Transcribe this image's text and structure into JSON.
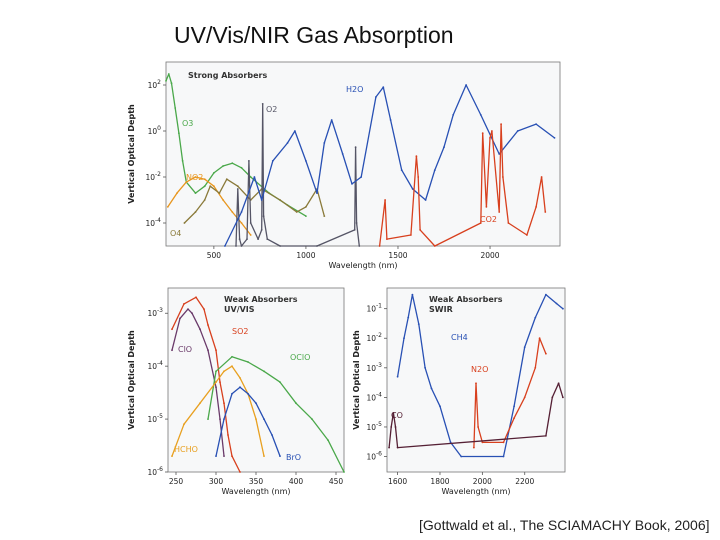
{
  "slide": {
    "title": "UV/Vis/NIR Gas Absorption",
    "caption": "[Gottwald et al., The SCIAMACHY Book, 2006]"
  },
  "chart_data": [
    {
      "type": "line",
      "title": "Strong Absorbers",
      "xlabel": "Wavelength (nm)",
      "ylabel": "Vertical Optical Depth",
      "yscale": "log",
      "xlim": [
        240,
        2380
      ],
      "ylim": [
        1e-05,
        1000.0
      ],
      "xticks": [
        500,
        1000,
        1500,
        2000
      ],
      "yticks": [
        {
          "value": 100,
          "label": "10^2"
        },
        {
          "value": 1,
          "label": "10^0"
        },
        {
          "value": 0.01,
          "label": "10^-2"
        },
        {
          "value": 0.0001,
          "label": "10^-4"
        }
      ],
      "colors": {
        "O3": "#4aa84a",
        "NO2": "#e8961e",
        "O4": "#8a7a3a",
        "O2": "#555566",
        "H2O": "#2850b4",
        "CO2": "#d8401e"
      },
      "series": [
        {
          "name": "O3",
          "x": [
            240,
            255,
            270,
            290,
            310,
            330,
            350,
            400,
            450,
            500,
            550,
            600,
            650,
            700,
            800,
            900,
            1000
          ],
          "y": [
            150,
            300,
            120,
            10,
            0.8,
            0.05,
            0.006,
            0.002,
            0.004,
            0.015,
            0.03,
            0.04,
            0.025,
            0.01,
            0.002,
            0.0006,
            0.0002
          ]
        },
        {
          "name": "NO2",
          "x": [
            250,
            300,
            350,
            400,
            450,
            500,
            550,
            600,
            650,
            700
          ],
          "y": [
            0.0005,
            0.002,
            0.006,
            0.01,
            0.008,
            0.004,
            0.001,
            0.0003,
            0.0001,
            3e-05
          ]
        },
        {
          "name": "O4",
          "x": [
            340,
            400,
            450,
            480,
            530,
            570,
            630,
            700,
            760,
            860,
            950,
            1000,
            1060,
            1100
          ],
          "y": [
            0.0001,
            0.0003,
            0.001,
            0.004,
            0.002,
            0.008,
            0.004,
            0.001,
            0.003,
            0.001,
            0.0003,
            0.0005,
            0.003,
            0.0002
          ]
        },
        {
          "name": "O2",
          "x": [
            620,
            630,
            640,
            650,
            680,
            690,
            700,
            740,
            760,
            765,
            770,
            790,
            860,
            1060,
            1265,
            1270,
            1275,
            1290
          ],
          "y": [
            1e-05,
            0.003,
            2e-05,
            1e-05,
            2e-05,
            0.05,
            0.0001,
            2e-05,
            5e-05,
            15,
            0.0002,
            2e-05,
            1e-05,
            1e-05,
            5e-05,
            0.2,
            0.0001,
            1e-05
          ]
        },
        {
          "name": "H2O",
          "x": [
            560,
            650,
            720,
            760,
            820,
            900,
            940,
            1000,
            1060,
            1100,
            1140,
            1200,
            1250,
            1300,
            1380,
            1420,
            1460,
            1520,
            1580,
            1650,
            1700,
            1750,
            1800,
            1870,
            1950,
            2050,
            2150,
            2250,
            2350
          ],
          "y": [
            1e-05,
            0.0003,
            0.01,
            0.001,
            0.05,
            0.3,
            1,
            0.05,
            0.002,
            0.3,
            3,
            0.1,
            0.005,
            0.01,
            30,
            80,
            3,
            0.02,
            0.003,
            0.001,
            0.02,
            0.2,
            5,
            100,
            5,
            0.1,
            1,
            2,
            0.5
          ]
        },
        {
          "name": "CO2",
          "x": [
            1400,
            1430,
            1440,
            1570,
            1600,
            1610,
            1620,
            1700,
            1950,
            1960,
            1980,
            2000,
            2010,
            2050,
            2060,
            2070,
            2100,
            2200,
            2250,
            2280,
            2300
          ],
          "y": [
            1e-05,
            0.001,
            2e-05,
            3e-05,
            0.08,
            0.01,
            5e-05,
            1e-05,
            0.0001,
            0.8,
            0.0005,
            0.5,
            1,
            0.0003,
            2,
            0.01,
            0.0001,
            3e-05,
            0.0005,
            0.01,
            0.0003
          ]
        }
      ]
    },
    {
      "type": "line",
      "title": "Weak Absorbers\nUV/VIS",
      "xlabel": "Wavelength (nm)",
      "ylabel": "Vertical Optical Depth",
      "yscale": "log",
      "xlim": [
        240,
        460
      ],
      "ylim": [
        1e-06,
        0.003
      ],
      "xticks": [
        250,
        300,
        350,
        400,
        450
      ],
      "yticks": [
        {
          "value": 0.001,
          "label": "10^-3"
        },
        {
          "value": 0.0001,
          "label": "10^-4"
        },
        {
          "value": 1e-05,
          "label": "10^-5"
        },
        {
          "value": 1e-06,
          "label": "10^-6"
        }
      ],
      "colors": {
        "SO2": "#d8401e",
        "ClO": "#6a3a6a",
        "OClO": "#4aa84a",
        "HCHO": "#e8a020",
        "BrO": "#2850b4"
      },
      "series": [
        {
          "name": "SO2",
          "x": [
            245,
            260,
            275,
            285,
            290,
            300,
            305,
            310,
            315,
            320,
            330
          ],
          "y": [
            0.0005,
            0.0015,
            0.002,
            0.0012,
            0.0006,
            0.0002,
            5e-05,
            2e-05,
            5e-06,
            2e-06,
            1e-06
          ]
        },
        {
          "name": "ClO",
          "x": [
            245,
            255,
            265,
            270,
            280,
            290,
            300,
            305,
            310
          ],
          "y": [
            0.0002,
            0.0008,
            0.0012,
            0.001,
            0.0005,
            0.0002,
            4e-05,
            1e-05,
            2e-06
          ]
        },
        {
          "name": "OClO",
          "x": [
            290,
            300,
            320,
            340,
            360,
            380,
            400,
            420,
            440,
            460
          ],
          "y": [
            1e-05,
            8e-05,
            0.00015,
            0.00012,
            8e-05,
            5e-05,
            2e-05,
            1e-05,
            4e-06,
            1e-06
          ]
        },
        {
          "name": "HCHO",
          "x": [
            245,
            260,
            280,
            300,
            310,
            320,
            330,
            340,
            350,
            360
          ],
          "y": [
            2e-06,
            8e-06,
            2e-05,
            5e-05,
            8e-05,
            0.0001,
            6e-05,
            3e-05,
            1e-05,
            2e-06
          ]
        },
        {
          "name": "BrO",
          "x": [
            300,
            310,
            320,
            330,
            340,
            350,
            360,
            370,
            380
          ],
          "y": [
            2e-06,
            1e-05,
            3e-05,
            4e-05,
            3e-05,
            2e-05,
            1e-05,
            5e-06,
            2e-06
          ]
        }
      ]
    },
    {
      "type": "line",
      "title": "Weak Absorbers\nSWIR",
      "xlabel": "Wavelength (nm)",
      "ylabel": "Vertical Optical Depth",
      "yscale": "log",
      "xlim": [
        1550,
        2390
      ],
      "ylim": [
        3e-07,
        0.5
      ],
      "xticks": [
        1600,
        1800,
        2000,
        2200
      ],
      "yticks": [
        {
          "value": 0.1,
          "label": "10^-1"
        },
        {
          "value": 0.01,
          "label": "10^-2"
        },
        {
          "value": 0.001,
          "label": "10^-3"
        },
        {
          "value": 0.0001,
          "label": "10^-4"
        },
        {
          "value": 1e-05,
          "label": "10^-5"
        },
        {
          "value": 1e-06,
          "label": "10^-6"
        }
      ],
      "colors": {
        "CH4": "#2850b4",
        "N2O": "#d8401e",
        "CO": "#552035"
      },
      "series": [
        {
          "name": "CH4",
          "x": [
            1600,
            1630,
            1650,
            1670,
            1700,
            1730,
            1760,
            1800,
            1850,
            1900,
            2100,
            2150,
            2200,
            2250,
            2300,
            2350,
            2380
          ],
          "y": [
            0.0005,
            0.01,
            0.05,
            0.3,
            0.03,
            0.001,
            0.0002,
            5e-05,
            3e-06,
            1e-06,
            1e-06,
            5e-05,
            0.005,
            0.05,
            0.3,
            0.15,
            0.1
          ]
        },
        {
          "name": "N2O",
          "x": [
            1960,
            1970,
            1980,
            2000,
            2100,
            2150,
            2200,
            2250,
            2270,
            2300
          ],
          "y": [
            2e-06,
            0.0003,
            1e-05,
            3e-06,
            3e-06,
            2e-05,
            0.0001,
            0.001,
            0.01,
            0.003
          ]
        },
        {
          "name": "CO",
          "x": [
            1560,
            1570,
            1580,
            1590,
            1600,
            2300,
            2330,
            2360,
            2380
          ],
          "y": [
            2e-06,
            1e-05,
            3e-05,
            1e-05,
            2e-06,
            5e-06,
            0.0001,
            0.0003,
            0.0001
          ]
        }
      ]
    }
  ]
}
